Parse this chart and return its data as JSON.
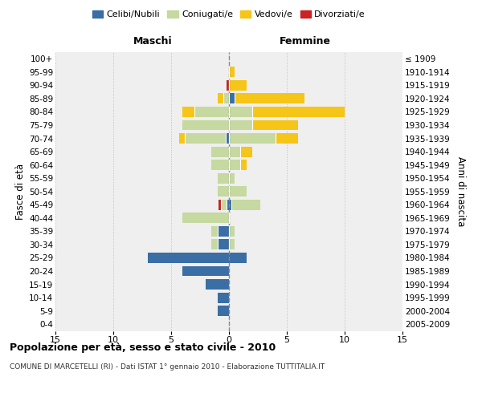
{
  "age_groups": [
    "0-4",
    "5-9",
    "10-14",
    "15-19",
    "20-24",
    "25-29",
    "30-34",
    "35-39",
    "40-44",
    "45-49",
    "50-54",
    "55-59",
    "60-64",
    "65-69",
    "70-74",
    "75-79",
    "80-84",
    "85-89",
    "90-94",
    "95-99",
    "100+"
  ],
  "birth_years": [
    "2005-2009",
    "2000-2004",
    "1995-1999",
    "1990-1994",
    "1985-1989",
    "1980-1984",
    "1975-1979",
    "1970-1974",
    "1965-1969",
    "1960-1964",
    "1955-1959",
    "1950-1954",
    "1945-1949",
    "1940-1944",
    "1935-1939",
    "1930-1934",
    "1925-1929",
    "1920-1924",
    "1915-1919",
    "1910-1914",
    "≤ 1909"
  ],
  "male_celibi": [
    0,
    1,
    1,
    2,
    4,
    7,
    1,
    1,
    0,
    0.2,
    0,
    0,
    0,
    0,
    0.3,
    0,
    0,
    0,
    0,
    0,
    0
  ],
  "male_coniugati": [
    0,
    0,
    0,
    0,
    0,
    0,
    0.5,
    0.5,
    4,
    0.5,
    1,
    1,
    1.5,
    1.5,
    3.5,
    4,
    3,
    0.5,
    0,
    0,
    0
  ],
  "male_vedovi": [
    0,
    0,
    0,
    0,
    0,
    0,
    0,
    0,
    0,
    0,
    0,
    0,
    0,
    0,
    0.5,
    0,
    1,
    0.5,
    0,
    0,
    0
  ],
  "male_divorziati": [
    0,
    0,
    0,
    0,
    0,
    0,
    0,
    0,
    0,
    0.2,
    0,
    0,
    0,
    0,
    0,
    0,
    0,
    0,
    0.2,
    0,
    0
  ],
  "female_celibi": [
    0,
    0,
    0,
    0,
    0,
    1.5,
    0,
    0,
    0,
    0.2,
    0,
    0,
    0,
    0,
    0,
    0,
    0,
    0.5,
    0,
    0,
    0
  ],
  "female_coniugati": [
    0,
    0,
    0,
    0,
    0,
    0,
    0.5,
    0.5,
    0,
    2.5,
    1.5,
    0.5,
    1,
    1,
    4,
    2,
    2,
    0,
    0,
    0,
    0
  ],
  "female_vedovi": [
    0,
    0,
    0,
    0,
    0,
    0,
    0,
    0,
    0,
    0,
    0,
    0,
    0.5,
    1,
    2,
    4,
    8,
    6,
    1.5,
    0.5,
    0
  ],
  "female_divorziati": [
    0,
    0,
    0,
    0,
    0,
    0,
    0,
    0,
    0,
    0,
    0,
    0,
    0,
    0,
    0,
    0,
    0,
    0,
    0,
    0,
    0
  ],
  "color_celibi": "#3a6ea5",
  "color_coniugati": "#c5d9a0",
  "color_vedovi": "#f5c518",
  "color_divorziati": "#cc2222",
  "xlim": 15,
  "xticks": [
    -15,
    -10,
    -5,
    0,
    5,
    10,
    15
  ],
  "xticklabels": [
    "15",
    "10",
    "5",
    "0",
    "5",
    "10",
    "15"
  ],
  "title": "Popolazione per età, sesso e stato civile - 2010",
  "subtitle": "COMUNE DI MARCETELLI (RI) - Dati ISTAT 1° gennaio 2010 - Elaborazione TUTTITALIA.IT",
  "header_left": "Maschi",
  "header_right": "Femmine",
  "ylabel_left": "Fasce di età",
  "ylabel_right": "Anni di nascita",
  "legend_labels": [
    "Celibi/Nubili",
    "Coniugati/e",
    "Vedovi/e",
    "Divorziati/e"
  ],
  "bg_color": "#efefef"
}
